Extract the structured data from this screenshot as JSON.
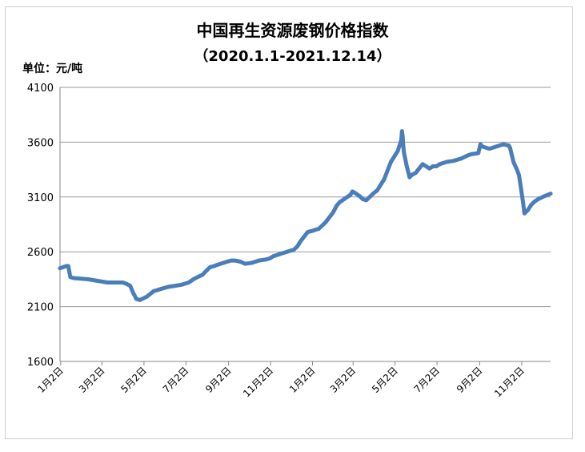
{
  "chart_data": {
    "type": "line",
    "title": "中国再生资源废钢价格指数",
    "subtitle": "（2020.1.1-2021.12.14）",
    "ylabel": "单位：元/吨",
    "xlabel": "",
    "ylim": [
      1600,
      4100
    ],
    "yticks": [
      "1600",
      "2100",
      "2600",
      "3100",
      "3600",
      "4100"
    ],
    "xlim": [
      "2020-01-01",
      "2021-12-14"
    ],
    "xticks": [
      {
        "date": "2020-01-02",
        "label": "1月2日"
      },
      {
        "date": "2020-03-02",
        "label": "3月2日"
      },
      {
        "date": "2020-05-02",
        "label": "5月2日"
      },
      {
        "date": "2020-07-02",
        "label": "7月2日"
      },
      {
        "date": "2020-09-02",
        "label": "9月2日"
      },
      {
        "date": "2020-11-02",
        "label": "11月2日"
      },
      {
        "date": "2021-01-02",
        "label": "1月2日"
      },
      {
        "date": "2021-03-02",
        "label": "3月2日"
      },
      {
        "date": "2021-05-02",
        "label": "5月2日"
      },
      {
        "date": "2021-07-02",
        "label": "7月2日"
      },
      {
        "date": "2021-09-02",
        "label": "9月2日"
      },
      {
        "date": "2021-11-02",
        "label": "11月2日"
      }
    ],
    "grid": true,
    "legend": "none",
    "color": "#4a7ebb",
    "series": [
      {
        "x": [
          "2020-01-01",
          "2020-01-10",
          "2020-01-13",
          "2020-01-16",
          "2020-01-21",
          "2020-02-10",
          "2020-03-10",
          "2020-04-01",
          "2020-04-06",
          "2020-04-12",
          "2020-04-16",
          "2020-04-21",
          "2020-04-26",
          "2020-05-06",
          "2020-05-16",
          "2020-05-26",
          "2020-06-06",
          "2020-06-16",
          "2020-06-26",
          "2020-07-06",
          "2020-07-13",
          "2020-07-19",
          "2020-07-26",
          "2020-07-29",
          "2020-08-06",
          "2020-08-12",
          "2020-08-16",
          "2020-08-26",
          "2020-08-31",
          "2020-09-06",
          "2020-09-11",
          "2020-09-19",
          "2020-09-26",
          "2020-10-06",
          "2020-10-16",
          "2020-10-26",
          "2020-11-01",
          "2020-11-06",
          "2020-11-16",
          "2020-11-26",
          "2020-12-01",
          "2020-12-06",
          "2020-12-11",
          "2020-12-16",
          "2020-12-26",
          "2021-01-01",
          "2021-01-06",
          "2021-01-11",
          "2021-01-21",
          "2021-02-01",
          "2021-02-06",
          "2021-02-10",
          "2021-02-26",
          "2021-03-01",
          "2021-03-04",
          "2021-03-11",
          "2021-03-16",
          "2021-03-21",
          "2021-03-31",
          "2021-04-06",
          "2021-04-16",
          "2021-04-26",
          "2021-05-06",
          "2021-05-11",
          "2021-05-12",
          "2021-05-13",
          "2021-05-14",
          "2021-05-15",
          "2021-05-19",
          "2021-05-23",
          "2021-05-26",
          "2021-06-01",
          "2021-06-06",
          "2021-06-11",
          "2021-06-16",
          "2021-06-21",
          "2021-06-26",
          "2021-07-01",
          "2021-07-06",
          "2021-07-16",
          "2021-07-26",
          "2021-08-06",
          "2021-08-16",
          "2021-08-21",
          "2021-08-31",
          "2021-09-03",
          "2021-09-06",
          "2021-09-16",
          "2021-09-26",
          "2021-10-06",
          "2021-10-14",
          "2021-10-16",
          "2021-10-21",
          "2021-10-26",
          "2021-10-29",
          "2021-11-01",
          "2021-11-04",
          "2021-11-06",
          "2021-11-11",
          "2021-11-16",
          "2021-11-21",
          "2021-11-26",
          "2021-12-06",
          "2021-12-14"
        ],
        "values": [
          2450,
          2470,
          2470,
          2370,
          2360,
          2350,
          2320,
          2320,
          2310,
          2290,
          2230,
          2170,
          2160,
          2190,
          2240,
          2260,
          2280,
          2290,
          2300,
          2320,
          2350,
          2370,
          2390,
          2410,
          2460,
          2470,
          2480,
          2500,
          2510,
          2520,
          2520,
          2510,
          2490,
          2500,
          2520,
          2530,
          2540,
          2560,
          2580,
          2600,
          2610,
          2620,
          2650,
          2700,
          2780,
          2790,
          2800,
          2810,
          2870,
          2960,
          3020,
          3050,
          3120,
          3150,
          3140,
          3110,
          3080,
          3070,
          3130,
          3160,
          3260,
          3420,
          3520,
          3620,
          3700,
          3650,
          3560,
          3500,
          3380,
          3280,
          3300,
          3320,
          3360,
          3400,
          3380,
          3360,
          3380,
          3380,
          3400,
          3420,
          3430,
          3450,
          3480,
          3490,
          3500,
          3580,
          3560,
          3540,
          3560,
          3580,
          3570,
          3550,
          3420,
          3350,
          3300,
          3180,
          3050,
          2950,
          2980,
          3030,
          3060,
          3080,
          3110,
          3130
        ]
      }
    ]
  }
}
